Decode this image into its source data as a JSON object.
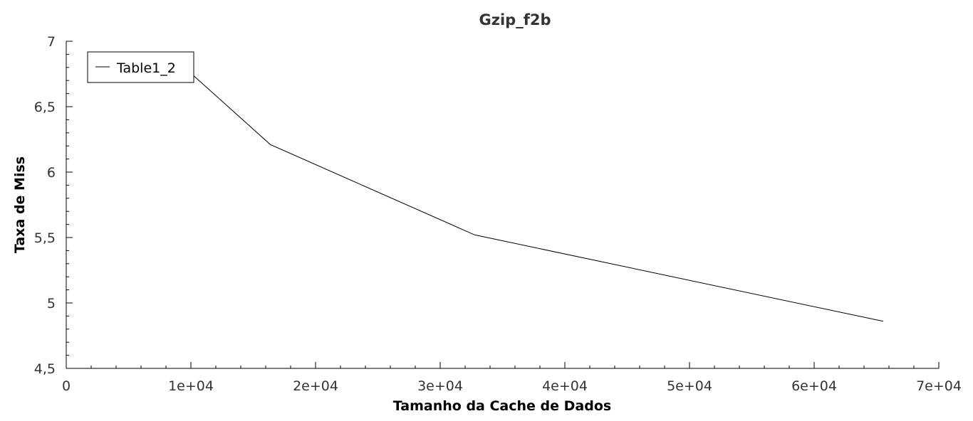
{
  "chart_data": {
    "type": "line",
    "title": "Gzip_f2b",
    "xlabel": "Tamanho da Cache de Dados",
    "ylabel": "Taxa de Miss",
    "xlim": [
      0,
      70000
    ],
    "ylim": [
      4.5,
      7
    ],
    "x_ticks": [
      {
        "value": 0,
        "label": "0"
      },
      {
        "value": 10000,
        "label": "1e+04"
      },
      {
        "value": 20000,
        "label": "2e+04"
      },
      {
        "value": 30000,
        "label": "3e+04"
      },
      {
        "value": 40000,
        "label": "4e+04"
      },
      {
        "value": 50000,
        "label": "5e+04"
      },
      {
        "value": 60000,
        "label": "6e+04"
      },
      {
        "value": 70000,
        "label": "7e+04"
      }
    ],
    "y_ticks": [
      {
        "value": 4.5,
        "label": "4,5"
      },
      {
        "value": 5,
        "label": "5"
      },
      {
        "value": 5.5,
        "label": "5,5"
      },
      {
        "value": 6,
        "label": "6"
      },
      {
        "value": 6.5,
        "label": "6,5"
      },
      {
        "value": 7,
        "label": "7"
      }
    ],
    "x_minor_step": 2000,
    "y_minor_step": 0.1,
    "grid": false,
    "legend_position": "top-left",
    "series": [
      {
        "name": "Table1_2",
        "color": "#000000",
        "x": [
          8192,
          16384,
          32768,
          65536
        ],
        "y": [
          6.91,
          6.21,
          5.52,
          4.86
        ]
      }
    ]
  }
}
